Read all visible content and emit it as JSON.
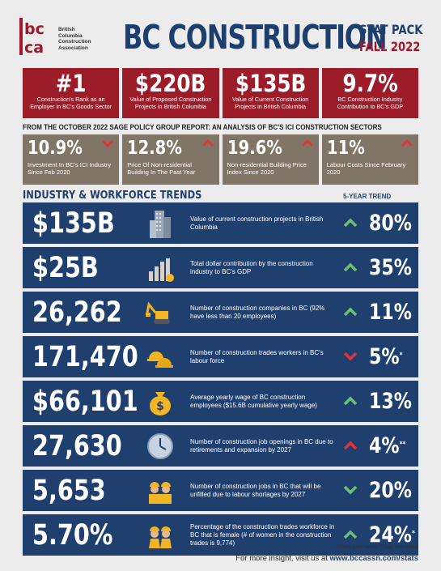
{
  "header": {
    "logo_letters": "bcca",
    "logo_text": [
      "British",
      "Columbia",
      "Construction",
      "Association"
    ],
    "title": "BC CONSTRUCTION",
    "stat_pack": "STAT PACK",
    "season": "FALL 2022"
  },
  "highlights": [
    {
      "value": "#1",
      "label": "Construction's Rank as an Employer in BC's Goods Sector"
    },
    {
      "value": "$220B",
      "label": "Value of Proposed Construction Projects in British Columbia"
    },
    {
      "value": "$135B",
      "label": "Value of Current Construction Projects in British Columbia"
    },
    {
      "value": "9.7%",
      "label": "BC Construction Industry Contribution to BC's GDP"
    }
  ],
  "ici_heading": "FROM THE OCTOBER 2022 SAGE POLICY GROUP REPORT: AN ANALYSIS OF BC'S ICI CONSTRUCTION SECTORS",
  "ici": [
    {
      "value": "10.9%",
      "label": "Investment In BC's ICI Industry Since Feb 2020",
      "direction": "down"
    },
    {
      "value": "12.8%",
      "label": "Price Of Non-residential Building In The Past Year",
      "direction": "up"
    },
    {
      "value": "19.6%",
      "label": "Non-residential Building Price Index Since 2020",
      "direction": "up"
    },
    {
      "value": "11%",
      "label": "Labour Costs Since February 2020",
      "direction": "up"
    }
  ],
  "trends_heading": "INDUSTRY & WORKFORCE TRENDS",
  "trend_col_heading": "5-YEAR TREND",
  "trends": [
    {
      "value": "$135B",
      "icon": "buildings-icon",
      "desc": "Value of current construction projects in British Columbia",
      "direction": "up",
      "pct": "80%",
      "mark": ""
    },
    {
      "value": "$25B",
      "icon": "bar-chart-coin-icon",
      "desc": "Total dollar contribution by the construction industry to BC's GDP",
      "direction": "up",
      "pct": "35%",
      "mark": ""
    },
    {
      "value": "26,262",
      "icon": "excavator-icon",
      "desc": "Number of construction companies in BC (92% have less than 20 employees)",
      "direction": "up",
      "pct": "11%",
      "mark": ""
    },
    {
      "value": "171,470",
      "icon": "hardhats-icon",
      "desc": "Number of construction trades workers in BC's labour force",
      "direction": "down",
      "pct": "5%",
      "mark": "*"
    },
    {
      "value": "$66,101",
      "icon": "money-bag-icon",
      "desc": "Average yearly wage of BC construction employees ($15.6B cumulative yearly wage)",
      "direction": "up",
      "pct": "13%",
      "mark": ""
    },
    {
      "value": "27,630",
      "icon": "clock-icon",
      "desc": "Number of construction job openings in BC due to retirements and expansion by 2027",
      "direction": "up-red",
      "pct": "4%",
      "mark": "**"
    },
    {
      "value": "5,653",
      "icon": "workers-icon",
      "desc": "Number of construction jobs in BC that will be unfilled due to labour shortages by 2027",
      "direction": "down-green",
      "pct": "20%",
      "mark": ""
    },
    {
      "value": "5.70%",
      "icon": "female-workers-icon",
      "desc": "Percentage of the construction trades workforce in BC that is female (# of women in the construction trades is 9,774)",
      "direction": "up",
      "pct": "24%",
      "mark": "*"
    }
  ],
  "footnote": "*Three year trend **Four year trend",
  "footer": {
    "prefix": "For more insight, visit us at ",
    "url": "www.bccassn.com/stats"
  },
  "colors": {
    "navy": "#1f406e",
    "red": "#9d1c2a",
    "taupe": "#817568",
    "green": "#6fbf73",
    "alert_red": "#e0343d"
  }
}
